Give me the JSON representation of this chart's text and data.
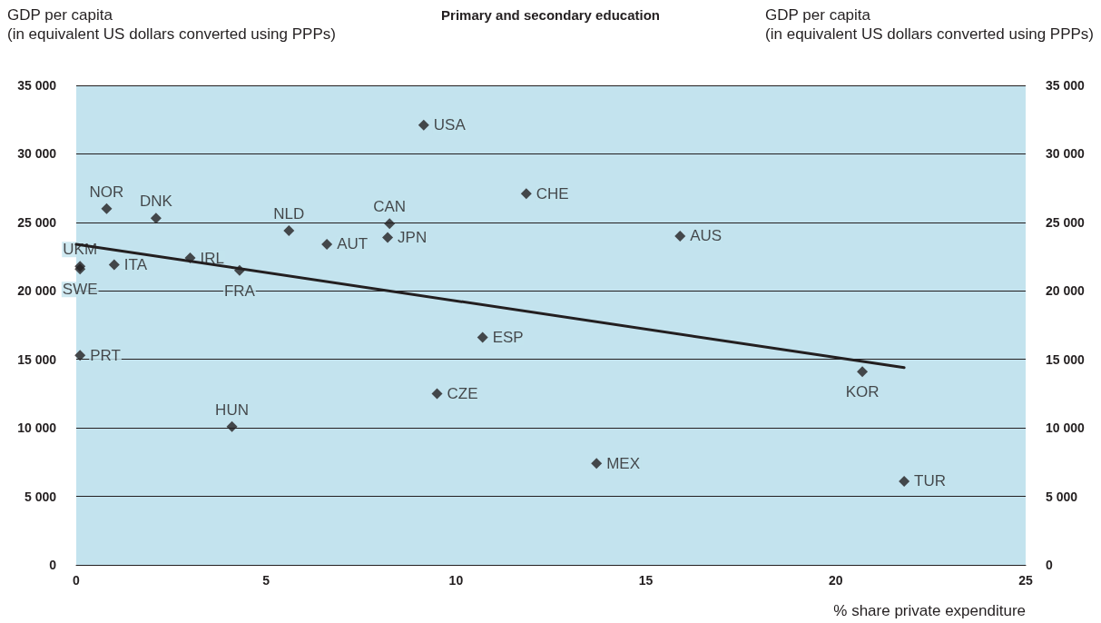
{
  "chart_data": {
    "type": "scatter",
    "title": "Primary and secondary education",
    "xlabel": "% share private expenditure",
    "ylabel": "GDP per capita\n(in equivalent US dollars converted using PPPs)",
    "y2label": "GDP per capita\n(in equivalent US dollars converted using PPPs)",
    "series": [
      {
        "color": "#231f20",
        "marker": "diamond",
        "x": [
          9.15,
          11.85,
          0.8,
          2.1,
          5.6,
          8.25,
          8.2,
          6.6,
          15.9,
          3.0,
          0.1,
          0.1,
          1.0,
          4.3,
          10.7,
          0.1,
          20.7,
          9.5,
          4.1,
          13.7,
          21.8
        ],
        "values": [
          32100,
          27100,
          26000,
          25300,
          24400,
          24900,
          23900,
          23400,
          24000,
          22400,
          21800,
          21600,
          21900,
          21500,
          16600,
          15300,
          14100,
          12500,
          10100,
          7400,
          6100
        ],
        "value_labels": [
          "USA",
          "CHE",
          "NOR",
          "DNK",
          "NLD",
          "CAN",
          "JPN",
          "AUT",
          "AUS",
          "IRL",
          "UKM",
          "SWE",
          "ITA",
          "FRA",
          "ESP",
          "PRT",
          "KOR",
          "CZE",
          "HUN",
          "MEX",
          "TUR"
        ]
      },
      {
        "type": "line",
        "color": "#231f20",
        "line_style": "solid",
        "marker": "none",
        "x": [
          0,
          21.8
        ],
        "values": [
          23400,
          14400
        ]
      }
    ],
    "xlim": [
      0,
      25
    ],
    "xticks": [
      0,
      5,
      10,
      15,
      20,
      25
    ],
    "ylim": [
      0,
      35000
    ],
    "yticks": [
      0,
      {
        "value": 5000,
        "label": "5 000"
      },
      {
        "value": 10000,
        "label": "10 000"
      },
      {
        "value": 15000,
        "label": "15 000"
      },
      {
        "value": 20000,
        "label": "20 000"
      },
      {
        "value": 25000,
        "label": "25 000"
      },
      {
        "value": 30000,
        "label": "30 000"
      },
      {
        "value": 35000,
        "label": "35 000"
      }
    ],
    "y2lim": [
      0,
      35000
    ],
    "y2ticks": [
      0,
      {
        "value": 5000,
        "label": "5 000"
      },
      {
        "value": 10000,
        "label": "10 000"
      },
      {
        "value": 15000,
        "label": "15 000"
      },
      {
        "value": 20000,
        "label": "20 000"
      },
      {
        "value": 25000,
        "label": "25 000"
      },
      {
        "value": 30000,
        "label": "30 000"
      },
      {
        "value": 35000,
        "label": "35 000"
      }
    ],
    "grid": "y"
  }
}
